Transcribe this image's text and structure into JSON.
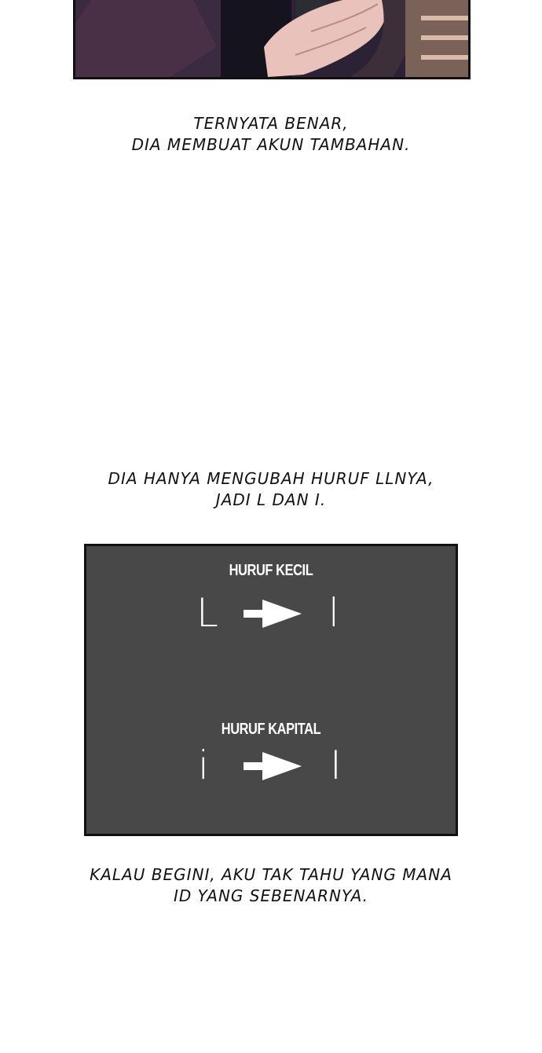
{
  "captions": {
    "top": [
      "TERNYATA BENAR,",
      "DIA MEMBUAT AKUN TAMBAHAN."
    ],
    "middle": [
      "DIA HANYA MENGUBAH HURUF LLNYA,",
      "JADI L DAN I."
    ],
    "bottom": [
      "KALAU BEGINI, AKU TAK TAHU YANG MANA",
      "ID YANG SEBENARNYA."
    ]
  },
  "diagram": {
    "lower_label": "HURUF KECIL",
    "lower_from": "L",
    "lower_to": "l",
    "upper_label": "HURUF KAPITAL",
    "upper_from": "i",
    "upper_to": "I",
    "background_color": "#474847",
    "text_color": "#ffffff"
  }
}
